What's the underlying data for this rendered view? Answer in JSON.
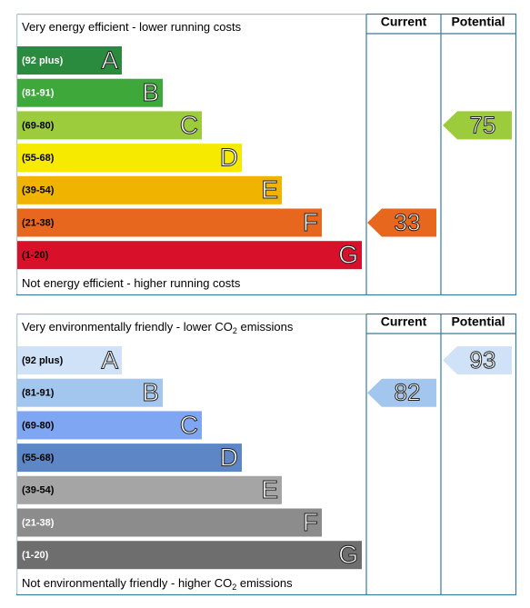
{
  "panels": [
    {
      "header": {
        "current": "Current",
        "potential": "Potential"
      },
      "top_text": [
        "Very energy efficient - lower running costs"
      ],
      "bottom_text": [
        "Not energy efficient - higher running costs"
      ],
      "bands": [
        {
          "range": "(92 plus)",
          "letter": "A",
          "color": "#2a8a3e",
          "text_color": "#ffffff"
        },
        {
          "range": "(81-91)",
          "letter": "B",
          "color": "#3ea83a",
          "text_color": "#ffffff"
        },
        {
          "range": "(69-80)",
          "letter": "C",
          "color": "#9ccb3b",
          "text_color": "#000000"
        },
        {
          "range": "(55-68)",
          "letter": "D",
          "color": "#f5ea00",
          "text_color": "#000000"
        },
        {
          "range": "(39-54)",
          "letter": "E",
          "color": "#f0b400",
          "text_color": "#000000"
        },
        {
          "range": "(21-38)",
          "letter": "F",
          "color": "#e8671e",
          "text_color": "#000000"
        },
        {
          "range": "(1-20)",
          "letter": "G",
          "color": "#d9102a",
          "text_color": "#000000"
        }
      ],
      "current": 33,
      "potential": 75
    },
    {
      "header": {
        "current": "Current",
        "potential": "Potential"
      },
      "top_text": [
        "Very environmentally friendly - lower CO",
        "2",
        " emissions"
      ],
      "bottom_text": [
        "Not environmentally friendly - higher CO",
        "2",
        " emissions"
      ],
      "bands": [
        {
          "range": "(92 plus)",
          "letter": "A",
          "color": "#cfe2f7",
          "text_color": "#000000"
        },
        {
          "range": "(81-91)",
          "letter": "B",
          "color": "#a3c6ee",
          "text_color": "#000000"
        },
        {
          "range": "(69-80)",
          "letter": "C",
          "color": "#7fa6f2",
          "text_color": "#000000"
        },
        {
          "range": "(55-68)",
          "letter": "D",
          "color": "#5c86c6",
          "text_color": "#000000"
        },
        {
          "range": "(39-54)",
          "letter": "E",
          "color": "#a5a5a5",
          "text_color": "#000000"
        },
        {
          "range": "(21-38)",
          "letter": "F",
          "color": "#8c8c8c",
          "text_color": "#ffffff"
        },
        {
          "range": "(1-20)",
          "letter": "G",
          "color": "#6e6e6e",
          "text_color": "#ffffff"
        }
      ],
      "current": 82,
      "potential": 93
    }
  ]
}
